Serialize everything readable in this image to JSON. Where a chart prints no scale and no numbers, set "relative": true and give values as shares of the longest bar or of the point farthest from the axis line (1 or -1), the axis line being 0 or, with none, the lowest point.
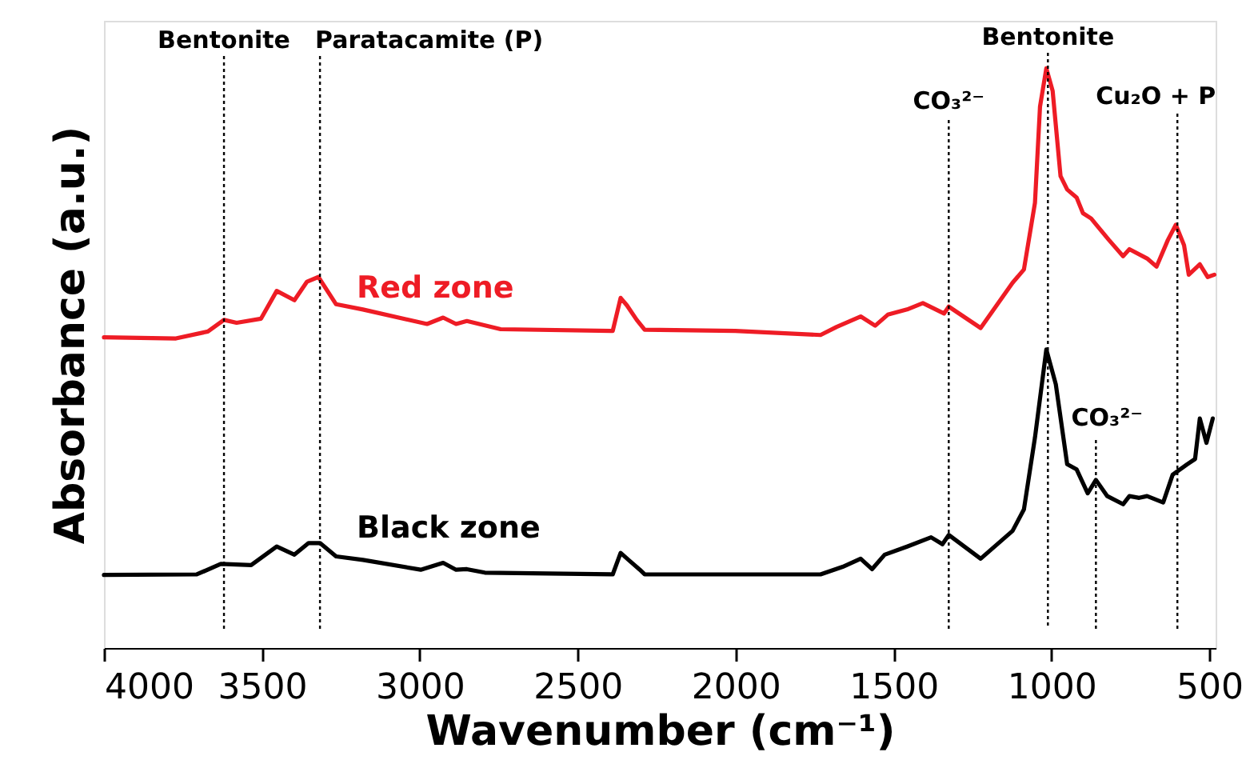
{
  "chart_data": {
    "type": "line",
    "xlabel": "Wavenumber (cm⁻¹)",
    "ylabel": "Absorbance (a.u.)",
    "relative": true,
    "xlim": [
      4000,
      480
    ],
    "xticks": [
      4000,
      3500,
      3000,
      2500,
      2000,
      1500,
      1000,
      500
    ],
    "grid": false,
    "line_style": "solid",
    "marker": "none",
    "series": [
      {
        "name": "Red zone",
        "color": "#ee1c25",
        "x": [
          4000,
          3772,
          3671,
          3620,
          3580,
          3503,
          3453,
          3397,
          3357,
          3321,
          3265,
          3180,
          2977,
          2926,
          2885,
          2851,
          2744,
          2389,
          2364,
          2344,
          2313,
          2288,
          2001,
          1731,
          1680,
          1604,
          1558,
          1518,
          1457,
          1407,
          1340,
          1325,
          1224,
          1123,
          1087,
          1052,
          1036,
          1016,
          996,
          971,
          950,
          920,
          900,
          874,
          859,
          818,
          773,
          753,
          697,
          667,
          631,
          606,
          580,
          565,
          530,
          505,
          484
        ],
        "values": [
          0.536,
          0.534,
          0.546,
          0.566,
          0.561,
          0.568,
          0.616,
          0.6,
          0.632,
          0.64,
          0.593,
          0.584,
          0.559,
          0.57,
          0.559,
          0.564,
          0.55,
          0.547,
          0.604,
          0.591,
          0.566,
          0.549,
          0.547,
          0.54,
          0.554,
          0.572,
          0.556,
          0.575,
          0.584,
          0.595,
          0.577,
          0.589,
          0.552,
          0.63,
          0.653,
          0.768,
          0.934,
          1.0,
          0.961,
          0.814,
          0.791,
          0.777,
          0.75,
          0.741,
          0.731,
          0.704,
          0.676,
          0.688,
          0.672,
          0.658,
          0.704,
          0.73,
          0.695,
          0.644,
          0.662,
          0.64,
          0.644
        ]
      },
      {
        "name": "Black zone",
        "color": "#000000",
        "x": [
          4000,
          3706,
          3630,
          3534,
          3453,
          3397,
          3352,
          3316,
          3265,
          3180,
          2997,
          2926,
          2885,
          2851,
          2794,
          2389,
          2364,
          2339,
          2303,
          2288,
          1731,
          1661,
          1604,
          1568,
          1528,
          1457,
          1381,
          1345,
          1325,
          1224,
          1123,
          1087,
          1052,
          1016,
          986,
          950,
          920,
          885,
          859,
          823,
          773,
          753,
          722,
          697,
          646,
          616,
          570,
          545,
          530,
          509,
          489
        ],
        "values": [
          0.126,
          0.127,
          0.145,
          0.143,
          0.175,
          0.161,
          0.181,
          0.181,
          0.158,
          0.152,
          0.135,
          0.147,
          0.135,
          0.136,
          0.13,
          0.127,
          0.164,
          0.152,
          0.135,
          0.127,
          0.127,
          0.14,
          0.154,
          0.136,
          0.161,
          0.175,
          0.191,
          0.179,
          0.195,
          0.154,
          0.202,
          0.239,
          0.363,
          0.515,
          0.455,
          0.317,
          0.308,
          0.267,
          0.29,
          0.262,
          0.248,
          0.262,
          0.259,
          0.262,
          0.251,
          0.299,
          0.317,
          0.326,
          0.396,
          0.354,
          0.396
        ]
      }
    ],
    "ref_lines": [
      {
        "axis": "x",
        "value": 3620,
        "label": "Bentonite",
        "color": "#000000",
        "line_style": "dotted"
      },
      {
        "axis": "x",
        "value": 3316,
        "label": "Paratacamite (P)",
        "color": "#000000",
        "line_style": "dotted"
      },
      {
        "axis": "x",
        "value": 1325,
        "label": "CO₃²⁻",
        "color": "#000000",
        "line_style": "dotted"
      },
      {
        "axis": "x",
        "value": 1011,
        "label": "Bentonite",
        "color": "#000000",
        "line_style": "dotted"
      },
      {
        "axis": "x",
        "value": 859,
        "label": "CO₃²⁻",
        "color": "#000000",
        "line_style": "dotted"
      },
      {
        "axis": "x",
        "value": 601,
        "label": "Cu₂O + P",
        "color": "#000000",
        "line_style": "dotted"
      }
    ]
  }
}
